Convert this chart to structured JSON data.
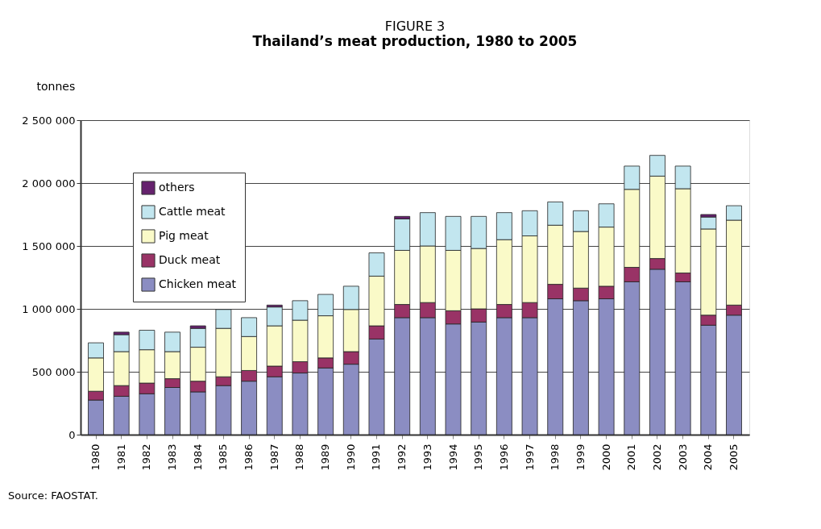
{
  "chart_data": {
    "type": "bar",
    "stacked": true,
    "title": "FIGURE 3",
    "subtitle": "Thailand’s meat production, 1980 to 2005",
    "ylabel": "tonnes",
    "categories": [
      "1980",
      "1981",
      "1982",
      "1983",
      "1984",
      "1985",
      "1986",
      "1987",
      "1988",
      "1989",
      "1990",
      "1991",
      "1992",
      "1993",
      "1994",
      "1995",
      "1996",
      "1997",
      "1998",
      "1999",
      "2000",
      "2001",
      "2002",
      "2003",
      "2004",
      "2005"
    ],
    "series": [
      {
        "name": "Chicken meat",
        "color": "#8b8dc2",
        "values": [
          275000,
          305000,
          325000,
          375000,
          340000,
          390000,
          425000,
          460000,
          490000,
          530000,
          560000,
          760000,
          930000,
          930000,
          880000,
          895000,
          930000,
          930000,
          1080000,
          1065000,
          1080000,
          1215000,
          1315000,
          1215000,
          870000,
          950000
        ]
      },
      {
        "name": "Duck meat",
        "color": "#993366",
        "values": [
          70000,
          85000,
          85000,
          70000,
          85000,
          70000,
          85000,
          85000,
          90000,
          80000,
          100000,
          105000,
          105000,
          120000,
          105000,
          105000,
          105000,
          120000,
          115000,
          100000,
          100000,
          115000,
          85000,
          70000,
          80000,
          80000
        ]
      },
      {
        "name": "Pig meat",
        "color": "#fafac8",
        "values": [
          265000,
          270000,
          265000,
          215000,
          270000,
          385000,
          270000,
          320000,
          330000,
          335000,
          335000,
          395000,
          430000,
          450000,
          480000,
          480000,
          515000,
          530000,
          470000,
          450000,
          470000,
          620000,
          655000,
          670000,
          685000,
          675000
        ]
      },
      {
        "name": "Cattle meat",
        "color": "#c2e6ef",
        "values": [
          120000,
          135000,
          155000,
          155000,
          150000,
          150000,
          150000,
          150000,
          155000,
          170000,
          185000,
          185000,
          250000,
          265000,
          270000,
          255000,
          215000,
          200000,
          185000,
          165000,
          185000,
          185000,
          165000,
          180000,
          95000,
          115000
        ]
      },
      {
        "name": "others",
        "color": "#66226e",
        "values": [
          null,
          20000,
          null,
          null,
          20000,
          null,
          null,
          15000,
          null,
          null,
          null,
          null,
          20000,
          null,
          null,
          null,
          null,
          null,
          null,
          null,
          null,
          null,
          null,
          null,
          20000,
          null
        ]
      }
    ],
    "ylim": [
      0,
      2500000
    ],
    "yticks": [
      0,
      {
        "value": 500000,
        "label": "500 000"
      },
      {
        "value": 1000000,
        "label": "1 000 000"
      },
      {
        "value": 1500000,
        "label": "1 500 000"
      },
      {
        "value": 2000000,
        "label": "2 000 000"
      },
      {
        "value": 2500000,
        "label": "2 500 000"
      }
    ],
    "grid": "y",
    "legend": "top left",
    "annotations": [
      "Source: FAOSTAT."
    ]
  }
}
